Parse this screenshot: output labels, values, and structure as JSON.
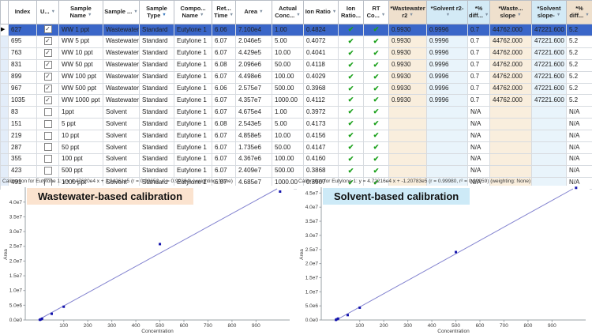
{
  "table": {
    "columns": [
      {
        "key": "sel",
        "label": "",
        "filter": false,
        "headClass": "",
        "cellClass": "sel-col"
      },
      {
        "key": "index",
        "label": "Index",
        "filter": false,
        "headClass": "",
        "cellClass": ""
      },
      {
        "key": "used",
        "label": "U...",
        "filter": true,
        "headClass": "",
        "cellClass": "c-center"
      },
      {
        "key": "sample_name",
        "label": "Sample Name",
        "filter": true,
        "headClass": "",
        "cellClass": ""
      },
      {
        "key": "sample_group",
        "label": "Sample ...",
        "filter": true,
        "headClass": "",
        "cellClass": ""
      },
      {
        "key": "sample_type",
        "label": "Sample Type",
        "filter": true,
        "filterActive": true,
        "headClass": "",
        "cellClass": ""
      },
      {
        "key": "component",
        "label": "Compo... Name",
        "filter": true,
        "headClass": "",
        "cellClass": ""
      },
      {
        "key": "rt",
        "label": "Ret... Time",
        "filter": true,
        "headClass": "",
        "cellClass": ""
      },
      {
        "key": "area",
        "label": "Area",
        "filter": true,
        "headClass": "",
        "cellClass": ""
      },
      {
        "key": "conc",
        "label": "Actual Conc...",
        "filter": true,
        "headClass": "",
        "cellClass": ""
      },
      {
        "key": "ion_ratio",
        "label": "Ion Ratio",
        "filter": true,
        "headClass": "",
        "cellClass": ""
      },
      {
        "key": "ion_ratio_pass",
        "label": "Ion Ratio...",
        "filter": false,
        "headClass": "",
        "cellClass": "c-center"
      },
      {
        "key": "rt_pass",
        "label": "RT Co...",
        "filter": true,
        "headClass": "",
        "cellClass": "c-center"
      },
      {
        "key": "ww_r2",
        "label": "*Wastewater r2",
        "filter": true,
        "headClass": "h-ww",
        "cellClass": "c-ww"
      },
      {
        "key": "sol_r2",
        "label": "*Solvent r2-",
        "filter": true,
        "headClass": "h-sol",
        "cellClass": "c-sol"
      },
      {
        "key": "pct_diff_r2",
        "label": "*% diff...",
        "filter": true,
        "headClass": "h-sol",
        "cellClass": ""
      },
      {
        "key": "ww_slope",
        "label": "*Waste... slope",
        "filter": true,
        "headClass": "h-ww",
        "cellClass": "c-ww"
      },
      {
        "key": "sol_slope",
        "label": "*Solvent slope-",
        "filter": true,
        "headClass": "h-sol",
        "cellClass": "c-sol"
      },
      {
        "key": "pct_diff_slope",
        "label": "*% diff...",
        "filter": true,
        "headClass": "h-ww",
        "cellClass": ""
      }
    ],
    "rows": [
      {
        "selected": true,
        "index": "627",
        "used": true,
        "sample_name": "WW 1 ppt",
        "sample_group": "Wastewater",
        "sample_type": "Standard",
        "component": "Eutylone 1",
        "rt": "6.06",
        "area": "7.100e4",
        "conc": "1.00",
        "ion_ratio": "0.4824",
        "ion_ratio_pass": true,
        "rt_pass": true,
        "ww_r2": "0.9930",
        "sol_r2": "0.9996",
        "pct_diff_r2": "0.7",
        "ww_slope": "44762.000",
        "sol_slope": "47221.600",
        "pct_diff_slope": "5.2"
      },
      {
        "selected": false,
        "index": "695",
        "used": true,
        "sample_name": "WW 5 ppt",
        "sample_group": "Wastewater",
        "sample_type": "Standard",
        "component": "Eutylone 1",
        "rt": "6.07",
        "area": "2.046e5",
        "conc": "5.00",
        "ion_ratio": "0.4072",
        "ion_ratio_pass": true,
        "rt_pass": true,
        "ww_r2": "0.9930",
        "sol_r2": "0.9996",
        "pct_diff_r2": "0.7",
        "ww_slope": "44762.000",
        "sol_slope": "47221.600",
        "pct_diff_slope": "5.2"
      },
      {
        "selected": false,
        "index": "763",
        "used": true,
        "sample_name": "WW 10 ppt",
        "sample_group": "Wastewater",
        "sample_type": "Standard",
        "component": "Eutylone 1",
        "rt": "6.07",
        "area": "4.429e5",
        "conc": "10.00",
        "ion_ratio": "0.4041",
        "ion_ratio_pass": true,
        "rt_pass": true,
        "ww_r2": "0.9930",
        "sol_r2": "0.9996",
        "pct_diff_r2": "0.7",
        "ww_slope": "44762.000",
        "sol_slope": "47221.600",
        "pct_diff_slope": "5.2"
      },
      {
        "selected": false,
        "index": "831",
        "used": true,
        "sample_name": "WW 50 ppt",
        "sample_group": "Wastewater",
        "sample_type": "Standard",
        "component": "Eutylone 1",
        "rt": "6.08",
        "area": "2.096e6",
        "conc": "50.00",
        "ion_ratio": "0.4118",
        "ion_ratio_pass": true,
        "rt_pass": true,
        "ww_r2": "0.9930",
        "sol_r2": "0.9996",
        "pct_diff_r2": "0.7",
        "ww_slope": "44762.000",
        "sol_slope": "47221.600",
        "pct_diff_slope": "5.2"
      },
      {
        "selected": false,
        "index": "899",
        "used": true,
        "sample_name": "WW 100 ppt",
        "sample_group": "Wastewater",
        "sample_type": "Standard",
        "component": "Eutylone 1",
        "rt": "6.07",
        "area": "4.498e6",
        "conc": "100.00",
        "ion_ratio": "0.4029",
        "ion_ratio_pass": true,
        "rt_pass": true,
        "ww_r2": "0.9930",
        "sol_r2": "0.9996",
        "pct_diff_r2": "0.7",
        "ww_slope": "44762.000",
        "sol_slope": "47221.600",
        "pct_diff_slope": "5.2"
      },
      {
        "selected": false,
        "index": "967",
        "used": true,
        "sample_name": "WW 500 ppt",
        "sample_group": "Wastewater",
        "sample_type": "Standard",
        "component": "Eutylone 1",
        "rt": "6.06",
        "area": "2.575e7",
        "conc": "500.00",
        "ion_ratio": "0.3968",
        "ion_ratio_pass": true,
        "rt_pass": true,
        "ww_r2": "0.9930",
        "sol_r2": "0.9996",
        "pct_diff_r2": "0.7",
        "ww_slope": "44762.000",
        "sol_slope": "47221.600",
        "pct_diff_slope": "5.2"
      },
      {
        "selected": false,
        "index": "1035",
        "used": true,
        "sample_name": "WW 1000 ppt",
        "sample_group": "Wastewater",
        "sample_type": "Standard",
        "component": "Eutylone 1",
        "rt": "6.07",
        "area": "4.357e7",
        "conc": "1000.00",
        "ion_ratio": "0.4112",
        "ion_ratio_pass": true,
        "rt_pass": true,
        "ww_r2": "0.9930",
        "sol_r2": "0.9996",
        "pct_diff_r2": "0.7",
        "ww_slope": "44762.000",
        "sol_slope": "47221.600",
        "pct_diff_slope": "5.2"
      },
      {
        "selected": false,
        "index": "83",
        "used": false,
        "sample_name": "1ppt",
        "sample_group": "Solvent",
        "sample_type": "Standard",
        "component": "Eutylone 1",
        "rt": "6.07",
        "area": "4.675e4",
        "conc": "1.00",
        "ion_ratio": "0.3972",
        "ion_ratio_pass": true,
        "rt_pass": true,
        "ww_r2": "",
        "sol_r2": "",
        "pct_diff_r2": "N/A",
        "ww_slope": "",
        "sol_slope": "",
        "pct_diff_slope": "N/A"
      },
      {
        "selected": false,
        "index": "151",
        "used": false,
        "sample_name": "5 ppt",
        "sample_group": "Solvent",
        "sample_type": "Standard",
        "component": "Eutylone 1",
        "rt": "6.08",
        "area": "2.543e5",
        "conc": "5.00",
        "ion_ratio": "0.4173",
        "ion_ratio_pass": true,
        "rt_pass": true,
        "ww_r2": "",
        "sol_r2": "",
        "pct_diff_r2": "N/A",
        "ww_slope": "",
        "sol_slope": "",
        "pct_diff_slope": "N/A"
      },
      {
        "selected": false,
        "index": "219",
        "used": false,
        "sample_name": "10 ppt",
        "sample_group": "Solvent",
        "sample_type": "Standard",
        "component": "Eutylone 1",
        "rt": "6.07",
        "area": "4.858e5",
        "conc": "10.00",
        "ion_ratio": "0.4156",
        "ion_ratio_pass": true,
        "rt_pass": true,
        "ww_r2": "",
        "sol_r2": "",
        "pct_diff_r2": "N/A",
        "ww_slope": "",
        "sol_slope": "",
        "pct_diff_slope": "N/A"
      },
      {
        "selected": false,
        "index": "287",
        "used": false,
        "sample_name": "50 ppt",
        "sample_group": "Solvent",
        "sample_type": "Standard",
        "component": "Eutylone 1",
        "rt": "6.07",
        "area": "1.735e6",
        "conc": "50.00",
        "ion_ratio": "0.4147",
        "ion_ratio_pass": true,
        "rt_pass": true,
        "ww_r2": "",
        "sol_r2": "",
        "pct_diff_r2": "N/A",
        "ww_slope": "",
        "sol_slope": "",
        "pct_diff_slope": "N/A"
      },
      {
        "selected": false,
        "index": "355",
        "used": false,
        "sample_name": "100 ppt",
        "sample_group": "Solvent",
        "sample_type": "Standard",
        "component": "Eutylone 1",
        "rt": "6.07",
        "area": "4.367e6",
        "conc": "100.00",
        "ion_ratio": "0.4160",
        "ion_ratio_pass": true,
        "rt_pass": true,
        "ww_r2": "",
        "sol_r2": "",
        "pct_diff_r2": "N/A",
        "ww_slope": "",
        "sol_slope": "",
        "pct_diff_slope": "N/A"
      },
      {
        "selected": false,
        "index": "423",
        "used": false,
        "sample_name": "500 ppt",
        "sample_group": "Solvent",
        "sample_type": "Standard",
        "component": "Eutylone 1",
        "rt": "6.07",
        "area": "2.409e7",
        "conc": "500.00",
        "ion_ratio": "0.3868",
        "ion_ratio_pass": true,
        "rt_pass": true,
        "ww_r2": "",
        "sol_r2": "",
        "pct_diff_r2": "N/A",
        "ww_slope": "",
        "sol_slope": "",
        "pct_diff_slope": "N/A"
      },
      {
        "selected": false,
        "index": "491",
        "used": false,
        "sample_name": "1000 ppt",
        "sample_group": "Solvent",
        "sample_type": "Standard",
        "component": "Eutylone 1",
        "rt": "6.07",
        "area": "4.685e7",
        "conc": "1000.00",
        "ion_ratio": "0.3907",
        "ion_ratio_pass": true,
        "rt_pass": true,
        "ww_r2": "",
        "sol_r2": "",
        "pct_diff_r2": "N/A",
        "ww_slope": "",
        "sol_slope": "",
        "pct_diff_slope": "N/A"
      }
    ]
  },
  "calibration": {
    "left": "Calibration for Eutylone 1: y = 4.47620e4 x + 2.94261e5 (r = 0.99652, r² = 0.99304)   (weighting: None)",
    "right": "Calibration for Eutylone 1: y = 4.72216e4 x + -1.20783e5 (r = 0.99980, r² = 0.99959)   (weighting: None)"
  },
  "chart_data": [
    {
      "type": "scatter",
      "title": "Wastewater-based calibration",
      "xlabel": "Concentration",
      "ylabel": "Area",
      "x": [
        1,
        5,
        10,
        50,
        100,
        500,
        1000
      ],
      "y": [
        71000,
        204600,
        442900,
        2096000,
        4498000,
        25750000,
        43570000
      ],
      "fit": {
        "slope": 44762.0,
        "intercept": 294261,
        "r": 0.99652,
        "r2": 0.99304,
        "weighting": "None"
      },
      "xlim": [
        -60,
        1040
      ],
      "ylim": [
        0,
        44500000
      ],
      "xticks": [
        100,
        200,
        300,
        400,
        500,
        600,
        700,
        800,
        900
      ],
      "yticks": [
        0,
        5000000,
        10000000,
        15000000,
        20000000,
        25000000,
        30000000,
        35000000,
        40000000
      ],
      "ytick_labels": [
        "0.0e0",
        "5.0e6",
        "1.0e7",
        "1.5e7",
        "2.0e7",
        "2.5e7",
        "3.0e7",
        "3.5e7",
        "4.0e7"
      ],
      "grid": false,
      "legend": "none",
      "title_bg": "#fbe3cf"
    },
    {
      "type": "scatter",
      "title": "Solvent-based calibration",
      "xlabel": "Concentration",
      "ylabel": "Area",
      "x": [
        1,
        5,
        10,
        50,
        100,
        500,
        1000
      ],
      "y": [
        46750,
        254300,
        485800,
        1735000,
        4367000,
        24090000,
        46850000
      ],
      "fit": {
        "slope": 47221.6,
        "intercept": -120783,
        "r": 0.9998,
        "r2": 0.99959,
        "weighting": "None"
      },
      "xlim": [
        -60,
        1040
      ],
      "ylim": [
        0,
        46500000
      ],
      "xticks": [
        100,
        200,
        300,
        400,
        500,
        600,
        700,
        800,
        900
      ],
      "yticks": [
        0,
        5000000,
        10000000,
        15000000,
        20000000,
        25000000,
        30000000,
        35000000,
        40000000,
        45000000
      ],
      "ytick_labels": [
        "0.0e0",
        "5.0e6",
        "1.0e7",
        "1.5e7",
        "2.0e7",
        "2.5e7",
        "3.0e7",
        "3.5e7",
        "4.0e7",
        "4.5e7"
      ],
      "grid": false,
      "legend": "none",
      "title_bg": "#cdeaf7"
    }
  ],
  "colors": {
    "selected_row": "#3a66c8",
    "wastewater_col": "#f9eedd",
    "solvent_col": "#e9f4fb",
    "wastewater_head": "#efe0cd",
    "solvent_head": "#d3eaf6",
    "check_green": "#1ca11c",
    "fit_line": "#8282cf",
    "data_point": "#1515ad"
  }
}
